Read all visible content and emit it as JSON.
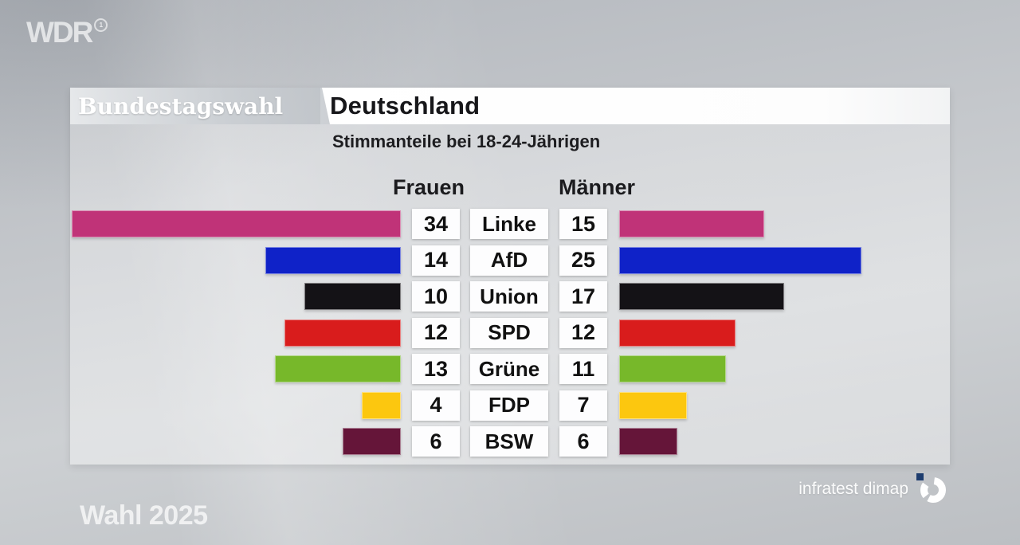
{
  "branding": {
    "channel_logo": "WDR",
    "ard_mark": "1",
    "program_brand": "Wahl 2025",
    "source_label": "infratest dimap",
    "source_mark_color": "#1d3c6e"
  },
  "header": {
    "kicker": "Bundestagswahl",
    "title": "Deutschland",
    "subtitle": "Stimmanteile bei 18-24-Jährigen"
  },
  "chart_data": {
    "type": "bar",
    "variant": "diverging-paired-horizontal",
    "title": "Stimmanteile bei 18-24-Jährigen",
    "unit": "percent",
    "group_labels": {
      "left": "Frauen",
      "right": "Männer"
    },
    "categories": [
      "Linke",
      "AfD",
      "Union",
      "SPD",
      "Grüne",
      "FDP",
      "BSW"
    ],
    "series": [
      {
        "name": "Frauen",
        "values": [
          34,
          14,
          10,
          12,
          13,
          4,
          6
        ]
      },
      {
        "name": "Männer",
        "values": [
          15,
          25,
          17,
          12,
          11,
          7,
          6
        ]
      }
    ],
    "party_colors": {
      "Linke": "#c03378",
      "AfD": "#0f22c8",
      "Union": "#141216",
      "SPD": "#d91c1c",
      "Grüne": "#77b82a",
      "FDP": "#fcc70f",
      "BSW": "#651539"
    },
    "axis_max": 34,
    "grid": false,
    "legend_position": "column-headers"
  }
}
